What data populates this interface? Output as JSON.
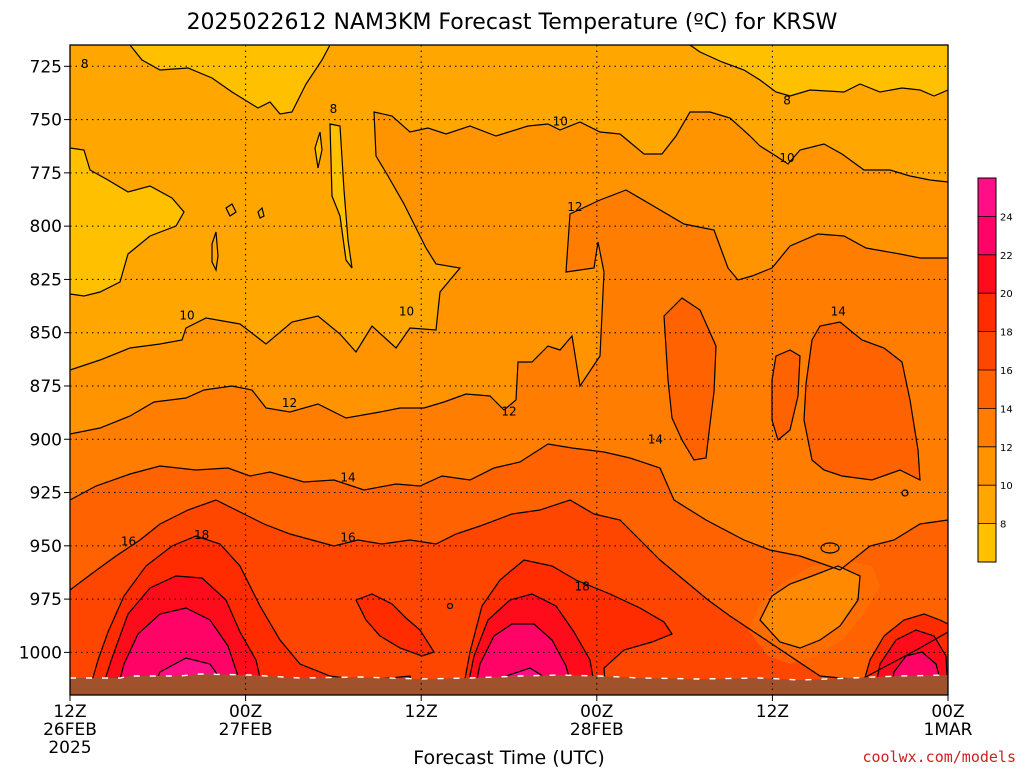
{
  "chart_data": {
    "type": "heatmap",
    "title": "2025022612 NAM3KM Forecast Temperature (ºC) for KRSW",
    "xlabel": "Forecast Time (UTC)",
    "ylabel": "",
    "credit": "coolwx.com/models",
    "y_axis": {
      "scale": "pressure (hPa), increasing downward",
      "range": [
        1020,
        715
      ],
      "ticks": [
        "725",
        "750",
        "775",
        "800",
        "825",
        "850",
        "875",
        "900",
        "925",
        "950",
        "975",
        "1000"
      ]
    },
    "x_axis": {
      "range": [
        "2025-02-26T12Z",
        "2025-03-01T00Z"
      ],
      "ticks": [
        {
          "lines": [
            "12Z",
            "26FEB",
            "2025"
          ],
          "hour": 0
        },
        {
          "lines": [
            "00Z",
            "27FEB"
          ],
          "hour": 12
        },
        {
          "lines": [
            "12Z"
          ],
          "hour": 24
        },
        {
          "lines": [
            "00Z",
            "28FEB"
          ],
          "hour": 36
        },
        {
          "lines": [
            "12Z"
          ],
          "hour": 48
        },
        {
          "lines": [
            "00Z",
            "1MAR"
          ],
          "hour": 60
        }
      ]
    },
    "colorbar": {
      "levels": [
        6,
        8,
        10,
        12,
        14,
        16,
        18,
        20,
        22,
        24,
        26
      ],
      "labels": [
        "8",
        "10",
        "12",
        "14",
        "16",
        "18",
        "20",
        "22",
        "24"
      ],
      "colors": [
        "#ffc000",
        "#ffa600",
        "#ff9400",
        "#ff7d00",
        "#ff6200",
        "#ff4600",
        "#ff2c00",
        "#ff0c1c",
        "#ff0466",
        "#ff0f86"
      ]
    },
    "contour_labels": [
      {
        "text": "8",
        "hour": 1.0,
        "p": 724
      },
      {
        "text": "8",
        "hour": 18.0,
        "p": 745
      },
      {
        "text": "8",
        "hour": 49.0,
        "p": 741
      },
      {
        "text": "10",
        "hour": 33.5,
        "p": 751
      },
      {
        "text": "10",
        "hour": 49.0,
        "p": 768
      },
      {
        "text": "10",
        "hour": 8.0,
        "p": 842
      },
      {
        "text": "10",
        "hour": 23.0,
        "p": 840
      },
      {
        "text": "12",
        "hour": 34.5,
        "p": 791
      },
      {
        "text": "12",
        "hour": 15.0,
        "p": 883
      },
      {
        "text": "12",
        "hour": 30.0,
        "p": 887
      },
      {
        "text": "14",
        "hour": 52.5,
        "p": 840
      },
      {
        "text": "14",
        "hour": 40.0,
        "p": 900
      },
      {
        "text": "14",
        "hour": 19.0,
        "p": 918
      },
      {
        "text": "16",
        "hour": 19.0,
        "p": 946
      },
      {
        "text": "16",
        "hour": 4.0,
        "p": 948
      },
      {
        "text": "18",
        "hour": 9.0,
        "p": 945
      },
      {
        "text": "18",
        "hour": 35.0,
        "p": 969
      }
    ],
    "regions": [
      {
        "name": "warm-core-26feb",
        "center_hour": 8.5,
        "max_temp": 24
      },
      {
        "name": "warm-core-27feb",
        "center_hour": 32.5,
        "max_temp": 24
      },
      {
        "name": "warm-core-28feb",
        "center_hour": 59.5,
        "max_temp": 22
      },
      {
        "name": "cool-pocket-28feb",
        "center_hour": 52.0,
        "max_temp": 12
      }
    ]
  }
}
